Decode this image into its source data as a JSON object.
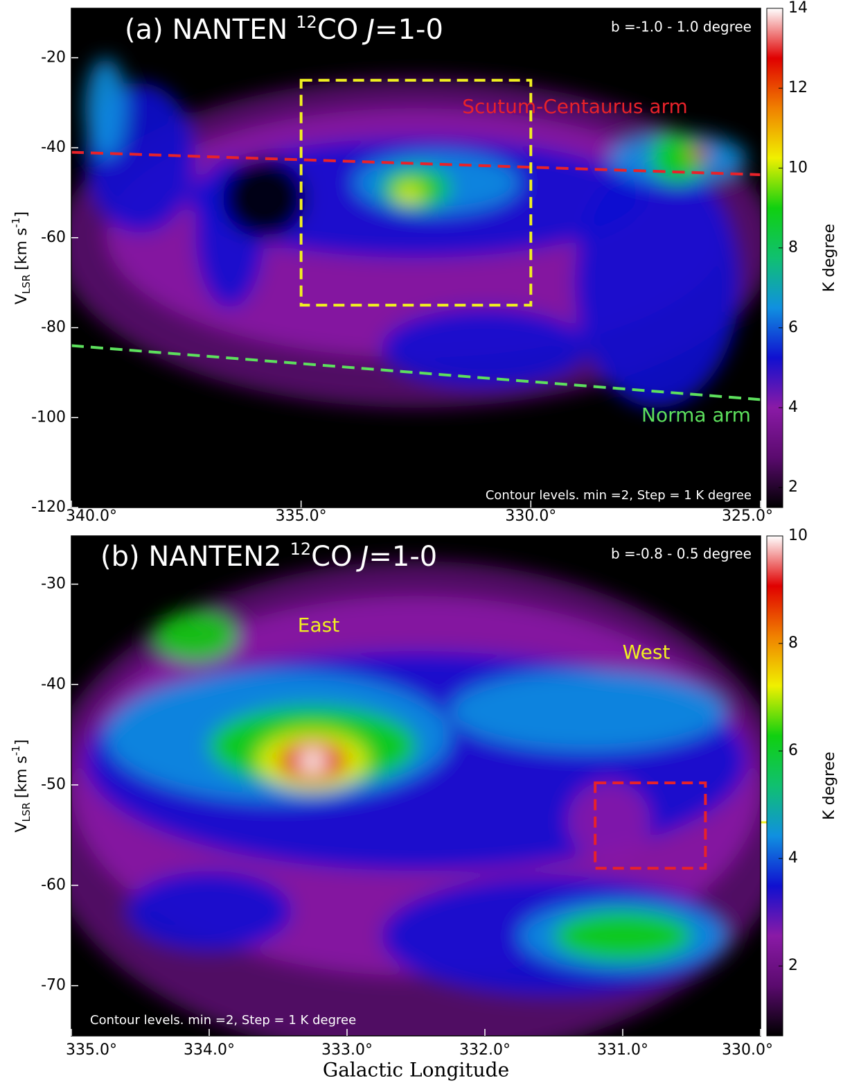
{
  "chart_data": [
    {
      "type": "heatmap",
      "title_parts": {
        "label": "(a) NANTEN",
        "isotope": "12",
        "molecule": "CO",
        "symbol": "J",
        "transition": "=1-0"
      },
      "ylabel_parts": {
        "main": "V",
        "sub": "LSR",
        "unit": "[km s",
        "exp": "-1",
        "close": "]"
      },
      "xlim": [
        340,
        325
      ],
      "xticks": [
        {
          "value": 340,
          "label": "340.0°"
        },
        {
          "value": 335,
          "label": "335.0°"
        },
        {
          "value": 330,
          "label": "330.0°"
        },
        {
          "value": 325,
          "label": "325.0°"
        }
      ],
      "ylim": [
        -120,
        -9
      ],
      "yticks": [
        -120,
        -100,
        -80,
        -60,
        -40,
        -20
      ],
      "colorbar": {
        "label": "K degree",
        "lim": [
          1.5,
          14
        ],
        "ticks": [
          2,
          4,
          6,
          8,
          10,
          12,
          14
        ]
      },
      "colormap": [
        "#000000",
        "#5a0a6e",
        "#8a1aa6",
        "#1010d0",
        "#1090e0",
        "#10c070",
        "#10d010",
        "#f0f000",
        "#f08000",
        "#e00000",
        "#ffffff"
      ],
      "latitude_range": "b =-1.0 - 1.0 degree",
      "contour_note": "Contour levels. min =2, Step = 1 K degree",
      "labels": [
        {
          "text": "Scutum-Centaurus arm",
          "color": "#e8222a"
        },
        {
          "text": "Norma arm",
          "color": "#5de05d"
        }
      ],
      "guides": [
        {
          "x": [
            340,
            325
          ],
          "y": [
            -41,
            -46
          ],
          "color": "#e8222a"
        },
        {
          "x": [
            340,
            325
          ],
          "y": [
            -84,
            -96
          ],
          "color": "#5de05d"
        }
      ],
      "boxes": [
        {
          "xlim": [
            335,
            330
          ],
          "ylim": [
            -25,
            -75
          ],
          "color": "#f0f020"
        }
      ]
    },
    {
      "type": "heatmap",
      "title_parts": {
        "label": "(b) NANTEN2",
        "isotope": "12",
        "molecule": "CO",
        "symbol": "J",
        "transition": "=1-0"
      },
      "ylabel_parts": {
        "main": "V",
        "sub": "LSR",
        "unit": "[km s",
        "exp": "-1",
        "close": "]"
      },
      "xlabel": "Galactic Longitude",
      "xlim": [
        335,
        330
      ],
      "xticks": [
        {
          "value": 335,
          "label": "335.0°"
        },
        {
          "value": 334,
          "label": "334.0°"
        },
        {
          "value": 333,
          "label": "333.0°"
        },
        {
          "value": 332,
          "label": "332.0°"
        },
        {
          "value": 331,
          "label": "331.0°"
        },
        {
          "value": 330,
          "label": "330.0°"
        }
      ],
      "ylim": [
        -75,
        -25.2
      ],
      "yticks": [
        -70,
        -60,
        -50,
        -40,
        -30
      ],
      "colorbar": {
        "label": "K degree",
        "lim": [
          0.7,
          10
        ],
        "ticks": [
          2,
          4,
          6,
          8,
          10
        ]
      },
      "colormap": [
        "#000000",
        "#5a0a6e",
        "#8a1aa6",
        "#1010d0",
        "#1090e0",
        "#10c070",
        "#10d010",
        "#f0f000",
        "#f08000",
        "#e00000",
        "#ffffff"
      ],
      "latitude_range": "b =-0.8 - 0.5 degree",
      "contour_note": "Contour levels. min =2, Step = 1 K degree",
      "labels": [
        {
          "text": "East",
          "color": "#f0f020"
        },
        {
          "text": "West",
          "color": "#f0f020"
        }
      ],
      "guides": [],
      "boxes": [
        {
          "xlim": [
            331.2,
            330.4
          ],
          "ylim": [
            -49.8,
            -58.3
          ],
          "color": "#e8222a"
        }
      ]
    }
  ]
}
